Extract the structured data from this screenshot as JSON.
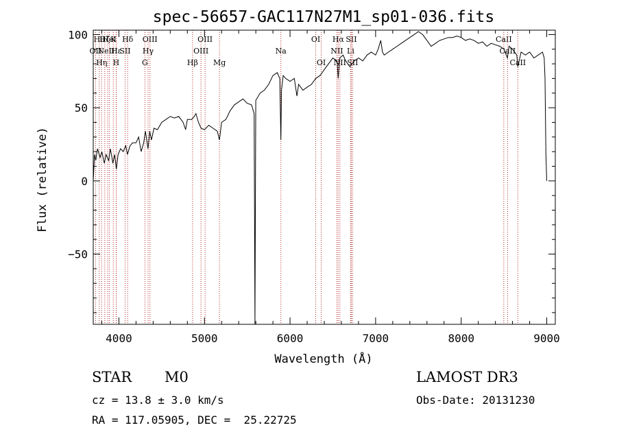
{
  "chart_data": {
    "type": "line",
    "title": "spec-56657-GAC117N27M1_sp01-036.fits",
    "xlabel": "Wavelength (Å)",
    "ylabel": "Flux (relative)",
    "xlim": [
      3700,
      9100
    ],
    "ylim": [
      -98,
      103
    ],
    "xticks": [
      4000,
      5000,
      6000,
      7000,
      8000,
      9000
    ],
    "yticks": [
      -50,
      0,
      50,
      100
    ],
    "grid": false,
    "legend": "none",
    "line_color": "#000000",
    "marker_color": "#b22222",
    "spectrum_points": [
      [
        3700,
        0
      ],
      [
        3715,
        18
      ],
      [
        3730,
        14
      ],
      [
        3750,
        22
      ],
      [
        3780,
        16
      ],
      [
        3800,
        20
      ],
      [
        3830,
        12
      ],
      [
        3850,
        18
      ],
      [
        3880,
        14
      ],
      [
        3900,
        22
      ],
      [
        3930,
        12
      ],
      [
        3950,
        18
      ],
      [
        3970,
        8
      ],
      [
        3990,
        18
      ],
      [
        4020,
        22
      ],
      [
        4050,
        20
      ],
      [
        4080,
        24
      ],
      [
        4100,
        18
      ],
      [
        4130,
        24
      ],
      [
        4160,
        26
      ],
      [
        4200,
        26
      ],
      [
        4230,
        30
      ],
      [
        4260,
        20
      ],
      [
        4290,
        26
      ],
      [
        4310,
        34
      ],
      [
        4340,
        22
      ],
      [
        4360,
        34
      ],
      [
        4380,
        28
      ],
      [
        4410,
        36
      ],
      [
        4450,
        35
      ],
      [
        4500,
        40
      ],
      [
        4550,
        42
      ],
      [
        4600,
        44
      ],
      [
        4650,
        43
      ],
      [
        4700,
        44
      ],
      [
        4750,
        40
      ],
      [
        4780,
        35
      ],
      [
        4800,
        42
      ],
      [
        4850,
        42
      ],
      [
        4880,
        44
      ],
      [
        4900,
        46
      ],
      [
        4930,
        40
      ],
      [
        4960,
        36
      ],
      [
        5000,
        35
      ],
      [
        5050,
        38
      ],
      [
        5100,
        36
      ],
      [
        5150,
        34
      ],
      [
        5175,
        28
      ],
      [
        5200,
        40
      ],
      [
        5250,
        42
      ],
      [
        5300,
        48
      ],
      [
        5350,
        52
      ],
      [
        5400,
        54
      ],
      [
        5450,
        56
      ],
      [
        5500,
        53
      ],
      [
        5550,
        52
      ],
      [
        5580,
        46
      ],
      [
        5590,
        -98
      ],
      [
        5600,
        55
      ],
      [
        5650,
        60
      ],
      [
        5700,
        62
      ],
      [
        5750,
        66
      ],
      [
        5800,
        72
      ],
      [
        5850,
        74
      ],
      [
        5880,
        70
      ],
      [
        5893,
        28
      ],
      [
        5900,
        62
      ],
      [
        5920,
        72
      ],
      [
        5950,
        70
      ],
      [
        6000,
        68
      ],
      [
        6050,
        70
      ],
      [
        6080,
        58
      ],
      [
        6100,
        66
      ],
      [
        6150,
        62
      ],
      [
        6200,
        64
      ],
      [
        6250,
        66
      ],
      [
        6300,
        70
      ],
      [
        6350,
        72
      ],
      [
        6400,
        76
      ],
      [
        6450,
        80
      ],
      [
        6500,
        84
      ],
      [
        6550,
        82
      ],
      [
        6563,
        70
      ],
      [
        6580,
        84
      ],
      [
        6620,
        86
      ],
      [
        6650,
        82
      ],
      [
        6700,
        78
      ],
      [
        6750,
        82
      ],
      [
        6800,
        84
      ],
      [
        6850,
        82
      ],
      [
        6900,
        86
      ],
      [
        6950,
        88
      ],
      [
        7000,
        86
      ],
      [
        7030,
        90
      ],
      [
        7060,
        96
      ],
      [
        7080,
        88
      ],
      [
        7100,
        86
      ],
      [
        7150,
        88
      ],
      [
        7200,
        90
      ],
      [
        7250,
        92
      ],
      [
        7300,
        94
      ],
      [
        7350,
        96
      ],
      [
        7400,
        98
      ],
      [
        7450,
        100
      ],
      [
        7500,
        102
      ],
      [
        7550,
        100
      ],
      [
        7600,
        96
      ],
      [
        7650,
        92
      ],
      [
        7700,
        94
      ],
      [
        7750,
        96
      ],
      [
        7800,
        97
      ],
      [
        7850,
        98
      ],
      [
        7900,
        98
      ],
      [
        7950,
        99
      ],
      [
        8000,
        98
      ],
      [
        8050,
        96
      ],
      [
        8100,
        97
      ],
      [
        8150,
        96
      ],
      [
        8200,
        94
      ],
      [
        8250,
        95
      ],
      [
        8300,
        92
      ],
      [
        8350,
        94
      ],
      [
        8400,
        93
      ],
      [
        8450,
        92
      ],
      [
        8500,
        90
      ],
      [
        8540,
        84
      ],
      [
        8560,
        92
      ],
      [
        8600,
        90
      ],
      [
        8650,
        86
      ],
      [
        8662,
        78
      ],
      [
        8700,
        88
      ],
      [
        8750,
        86
      ],
      [
        8800,
        88
      ],
      [
        8850,
        84
      ],
      [
        8900,
        86
      ],
      [
        8950,
        88
      ],
      [
        8970,
        84
      ],
      [
        8980,
        70
      ],
      [
        8990,
        18
      ],
      [
        9000,
        0
      ]
    ],
    "line_markers": [
      {
        "x": 3770,
        "label": "Hθ",
        "row": 1
      },
      {
        "x": 3727,
        "label": "OII",
        "row": 2
      },
      {
        "x": 3798,
        "label": "Hη",
        "row": 3
      },
      {
        "x": 3835,
        "label": "Hζ",
        "row": 1
      },
      {
        "x": 3869,
        "label": "NeIII",
        "row": 2
      },
      {
        "x": 3889,
        "label": "HeI",
        "row": 1
      },
      {
        "x": 3934,
        "label": "K",
        "row": 1
      },
      {
        "x": 3968,
        "label": "H",
        "row": 3
      },
      {
        "x": 3970,
        "label": "Hε",
        "row": 2
      },
      {
        "x": 4072,
        "label": "SII",
        "row": 2
      },
      {
        "x": 4102,
        "label": "Hδ",
        "row": 1
      },
      {
        "x": 4304,
        "label": "G",
        "row": 3
      },
      {
        "x": 4341,
        "label": "Hγ",
        "row": 2
      },
      {
        "x": 4363,
        "label": "OIII",
        "row": 1
      },
      {
        "x": 4861,
        "label": "Hβ",
        "row": 3
      },
      {
        "x": 4959,
        "label": "OIII",
        "row": 2
      },
      {
        "x": 5007,
        "label": "OIII",
        "row": 1
      },
      {
        "x": 5175,
        "label": "Mg",
        "row": 3
      },
      {
        "x": 5893,
        "label": "Na",
        "row": 2
      },
      {
        "x": 6300,
        "label": "OI",
        "row": 1
      },
      {
        "x": 6364,
        "label": "OI",
        "row": 3
      },
      {
        "x": 6548,
        "label": "NII",
        "row": 2
      },
      {
        "x": 6563,
        "label": "Hα",
        "row": 1
      },
      {
        "x": 6583,
        "label": "NII",
        "row": 3
      },
      {
        "x": 6708,
        "label": "Li",
        "row": 2
      },
      {
        "x": 6716,
        "label": "SII",
        "row": 1
      },
      {
        "x": 6731,
        "label": "SII",
        "row": 3
      },
      {
        "x": 8498,
        "label": "CaII",
        "row": 1
      },
      {
        "x": 8542,
        "label": "CaII",
        "row": 2
      },
      {
        "x": 8662,
        "label": "CaII",
        "row": 3
      }
    ]
  },
  "info": {
    "class_label": "STAR",
    "subclass": "M0",
    "redshift_line": "cz = 13.8 ± 3.0 km/s",
    "coords_line": "RA = 117.05905, DEC =  25.22725",
    "survey": "LAMOST DR3",
    "obs_date": "Obs-Date: 20131230"
  }
}
